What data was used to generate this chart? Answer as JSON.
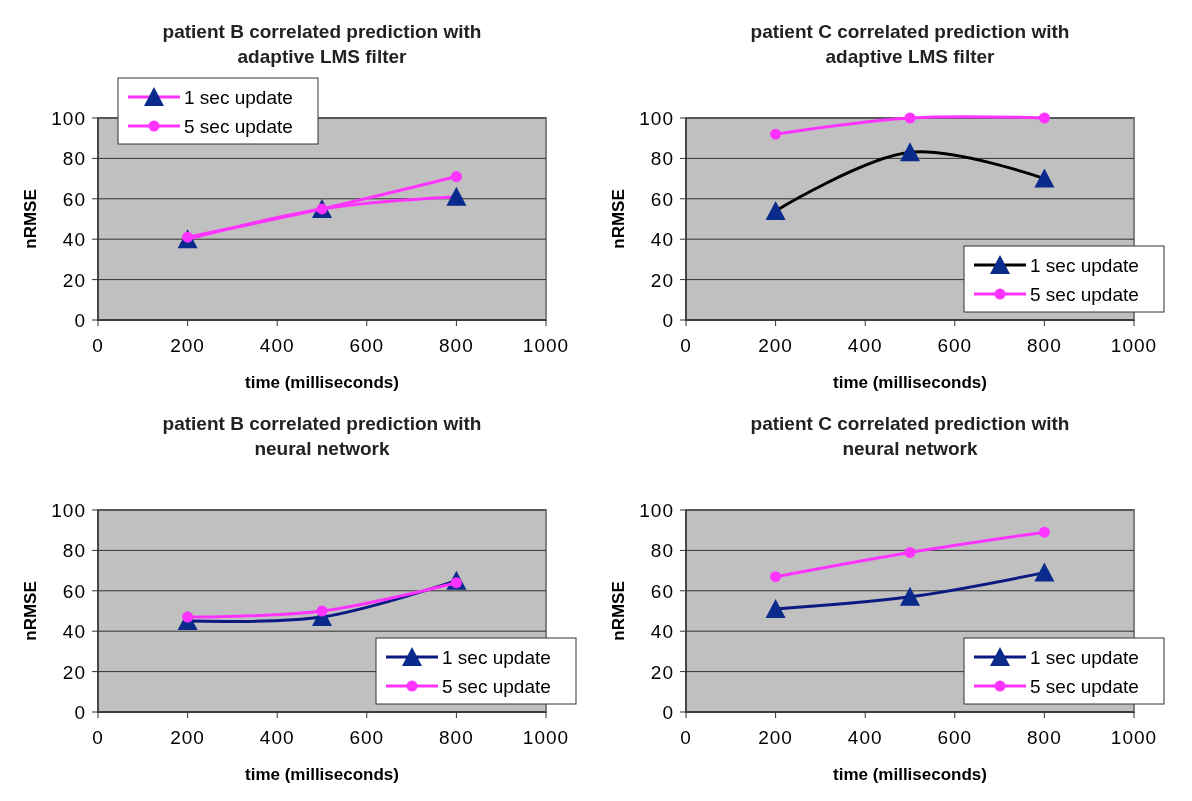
{
  "chart_data": [
    {
      "type": "line",
      "title": "patient B correlated prediction with adaptive LMS filter",
      "xlabel": "time (milliseconds)",
      "ylabel": "nRMSE",
      "xlim": [
        0,
        1000
      ],
      "xticks": [
        0,
        200,
        400,
        600,
        800,
        1000
      ],
      "ylim": [
        0,
        100
      ],
      "yticks": [
        0,
        20,
        40,
        60,
        80,
        100
      ],
      "grid": "y",
      "legend": "top left",
      "x": [
        200,
        500,
        800
      ],
      "series": [
        {
          "name": "1 sec update",
          "color": "#ff33ff",
          "colors": [
            "#0a2a8c",
            "#0a2a8c",
            "#0a2a8c"
          ],
          "marker": "triangle",
          "values": [
            40,
            55,
            61
          ]
        },
        {
          "name": "5 sec update",
          "color": "#ff33ff",
          "colors": [
            "#ff33ff",
            "#ff33ff",
            "#ff33ff"
          ],
          "marker": "circle",
          "values": [
            41,
            55,
            71
          ]
        }
      ]
    },
    {
      "type": "line",
      "title": "patient C correlated prediction with adaptive LMS filter",
      "xlabel": "time (milliseconds)",
      "ylabel": "nRMSE",
      "xlim": [
        0,
        1000
      ],
      "xticks": [
        0,
        200,
        400,
        600,
        800,
        1000
      ],
      "ylim": [
        0,
        100
      ],
      "yticks": [
        0,
        20,
        40,
        60,
        80,
        100
      ],
      "grid": "y",
      "legend": "bottom right",
      "x": [
        200,
        500,
        800
      ],
      "series": [
        {
          "name": "1 sec update",
          "color": "#000000",
          "colors": [
            "#0a2a8c",
            "#0a2a8c",
            "#0a2a8c"
          ],
          "marker": "triangle",
          "values": [
            54,
            83,
            70
          ]
        },
        {
          "name": "5 sec update",
          "color": "#ff33ff",
          "colors": [
            "#ff33ff",
            "#ff33ff",
            "#ff33ff"
          ],
          "marker": "circle",
          "values": [
            92,
            100,
            100
          ]
        }
      ]
    },
    {
      "type": "line",
      "title": "patient B correlated prediction with neural network",
      "xlabel": "time (milliseconds)",
      "ylabel": "nRMSE",
      "xlim": [
        0,
        1000
      ],
      "xticks": [
        0,
        200,
        400,
        600,
        800,
        1000
      ],
      "ylim": [
        0,
        100
      ],
      "yticks": [
        0,
        20,
        40,
        60,
        80,
        100
      ],
      "grid": "y",
      "legend": "bottom right",
      "x": [
        200,
        500,
        800
      ],
      "series": [
        {
          "name": "1 sec update",
          "color": "#0a1a80",
          "colors": [
            "#0a2a8c",
            "#0a2a8c",
            "#0a2a8c"
          ],
          "marker": "triangle",
          "values": [
            45,
            47,
            65
          ]
        },
        {
          "name": "5 sec update",
          "color": "#ff33ff",
          "colors": [
            "#ff33ff",
            "#ff33ff",
            "#ff33ff"
          ],
          "marker": "circle",
          "values": [
            47,
            50,
            64
          ]
        }
      ]
    },
    {
      "type": "line",
      "title": "patient C correlated prediction with neural network",
      "xlabel": "time (milliseconds)",
      "ylabel": "nRMSE",
      "xlim": [
        0,
        1000
      ],
      "xticks": [
        0,
        200,
        400,
        600,
        800,
        1000
      ],
      "ylim": [
        0,
        100
      ],
      "yticks": [
        0,
        20,
        40,
        60,
        80,
        100
      ],
      "grid": "y",
      "legend": "bottom right",
      "x": [
        200,
        500,
        800
      ],
      "series": [
        {
          "name": "1 sec update",
          "color": "#0a1a80",
          "colors": [
            "#0a2a8c",
            "#0a2a8c",
            "#0a2a8c"
          ],
          "marker": "triangle",
          "values": [
            51,
            57,
            69
          ]
        },
        {
          "name": "5 sec update",
          "color": "#ff33ff",
          "colors": [
            "#ff33ff",
            "#ff33ff",
            "#ff33ff"
          ],
          "marker": "circle",
          "values": [
            67,
            79,
            89
          ]
        }
      ]
    }
  ]
}
